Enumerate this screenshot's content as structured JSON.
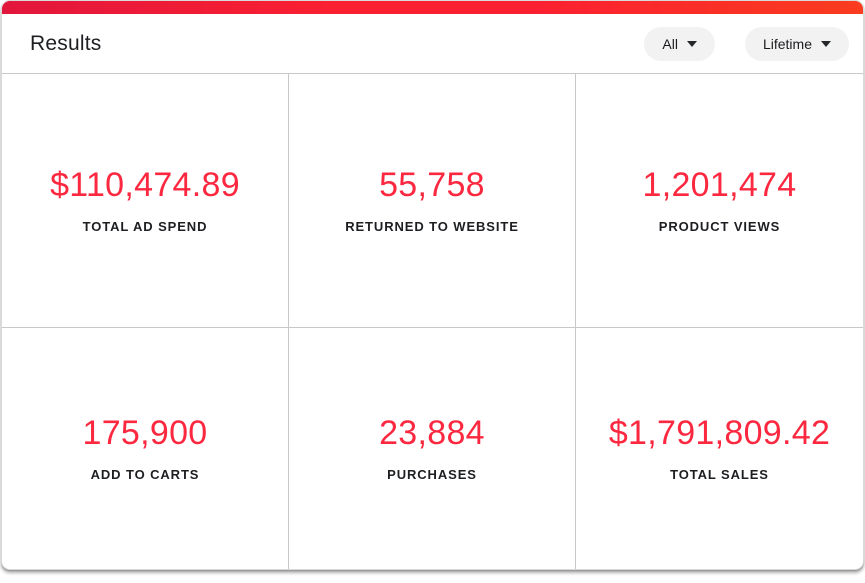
{
  "header": {
    "title": "Results",
    "filters": [
      {
        "label": "All"
      },
      {
        "label": "Lifetime"
      }
    ]
  },
  "metrics": [
    {
      "value": "$110,474.89",
      "label": "TOTAL AD SPEND"
    },
    {
      "value": "55,758",
      "label": "RETURNED TO WEBSITE"
    },
    {
      "value": "1,201,474",
      "label": "PRODUCT VIEWS"
    },
    {
      "value": "175,900",
      "label": "ADD TO CARTS"
    },
    {
      "value": "23,884",
      "label": "PURCHASES"
    },
    {
      "value": "$1,791,809.42",
      "label": "TOTAL SALES"
    }
  ],
  "colors": {
    "accent_red": "#fb2840",
    "topbar_gradient_left": "#e2173c",
    "topbar_gradient_mid": "#fb2031",
    "topbar_gradient_right": "#fa3c1f",
    "divider": "#c8c8c8",
    "label_text": "#1d1e21",
    "pill_background": "#f2f2f3"
  }
}
